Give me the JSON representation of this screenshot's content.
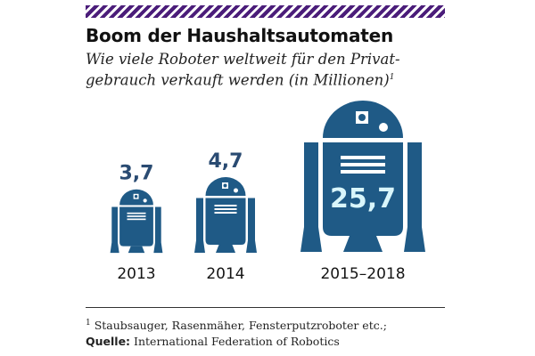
{
  "title": "Boom der Haushaltsautomaten",
  "subtitle_lines": [
    "Wie viele Roboter weltweit für den Privat-",
    "gebrauch verkauft werden (in Millionen)"
  ],
  "subtitle_footnote_mark": "1",
  "footnote": {
    "mark": "1",
    "text": "Staubsauger, Rasenmäher, Fensterputzroboter etc.;",
    "source_label": "Quelle:",
    "source_text": "International Federation of Robotics"
  },
  "colors": {
    "robot": "#1f5a86",
    "stripe": "#4b1d7a",
    "value": "#2a4b72"
  },
  "chart_data": {
    "type": "bar",
    "title": "Boom der Haushaltsautomaten",
    "subtitle": "Wie viele Roboter weltweit für den Privatgebrauch verkauft werden (in Millionen)",
    "unit": "Millionen",
    "categories": [
      "2013",
      "2014",
      "2015–2018"
    ],
    "values": [
      3.7,
      4.7,
      25.7
    ],
    "value_labels": [
      "3,7",
      "4,7",
      "25,7"
    ],
    "mark": "robot-icon"
  }
}
